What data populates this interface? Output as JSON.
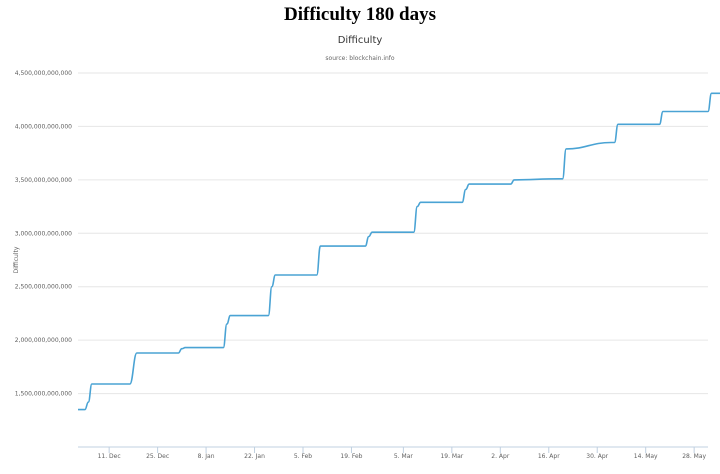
{
  "page": {
    "title": "Difficulty 180 days"
  },
  "chart_data": {
    "type": "line",
    "title": "Difficulty",
    "subtitle": "source: blockchain.info",
    "ylabel": "Difficulty",
    "xlabel": "",
    "ylim": [
      1000000000000,
      4500000000000
    ],
    "y_ticks": [
      1500000000000,
      2000000000000,
      2500000000000,
      3000000000000,
      3500000000000,
      4000000000000,
      4500000000000
    ],
    "y_tick_labels": [
      "1,500,000,000,000",
      "2,000,000,000,000",
      "2,500,000,000,000",
      "3,000,000,000,000",
      "3,500,000,000,000",
      "4,000,000,000,000",
      "4,500,000,000,000"
    ],
    "x_start": "2015-12-02",
    "x_end": "2016-06-01",
    "x_ticks": [
      "2015-12-11",
      "2015-12-25",
      "2016-01-08",
      "2016-01-22",
      "2016-02-05",
      "2016-02-19",
      "2016-03-05",
      "2016-03-19",
      "2016-04-02",
      "2016-04-16",
      "2016-04-30",
      "2016-05-14",
      "2016-05-28"
    ],
    "x_tick_labels": [
      "11. Dec",
      "25. Dec",
      "8. Jan",
      "22. Jan",
      "5. Feb",
      "19. Feb",
      "5. Mar",
      "19. Mar",
      "2. Apr",
      "16. Apr",
      "30. Apr",
      "14. May",
      "28. May"
    ],
    "grid": true,
    "legend": "none",
    "line_color": "#4aa3d4",
    "series": [
      {
        "x": [
          "2015-12-02",
          "2015-12-04",
          "2015-12-05",
          "2015-12-06",
          "2015-12-17",
          "2015-12-19",
          "2015-12-31",
          "2016-01-01",
          "2016-01-02",
          "2016-01-13",
          "2016-01-14",
          "2016-01-15",
          "2016-01-26",
          "2016-01-27",
          "2016-01-28",
          "2016-02-09",
          "2016-02-10",
          "2016-02-23",
          "2016-02-24",
          "2016-02-25",
          "2016-03-08",
          "2016-03-09",
          "2016-03-10",
          "2016-03-22",
          "2016-03-23",
          "2016-03-24",
          "2016-04-05",
          "2016-04-06",
          "2016-04-19",
          "2016-04-20",
          "2016-04-21",
          "2016-05-04",
          "2016-05-05",
          "2016-05-06",
          "2016-05-18",
          "2016-05-19",
          "2016-06-01",
          "2016-06-02",
          "2016-06-03",
          "2016-06-12"
        ],
        "y": [
          1350000000000,
          1350000000000,
          1420000000000,
          1590000000000,
          1590000000000,
          1880000000000,
          1880000000000,
          1920000000000,
          1930000000000,
          1930000000000,
          2150000000000,
          2230000000000,
          2230000000000,
          2500000000000,
          2610000000000,
          2610000000000,
          2880000000000,
          2880000000000,
          2970000000000,
          3010000000000,
          3010000000000,
          3250000000000,
          3290000000000,
          3290000000000,
          3410000000000,
          3460000000000,
          3460000000000,
          3500000000000,
          3510000000000,
          3510000000000,
          3790000000000,
          3850000000000,
          3850000000000,
          4020000000000,
          4020000000000,
          4140000000000,
          4140000000000,
          4310000000000,
          4310000000000,
          4310000000000
        ]
      }
    ]
  }
}
